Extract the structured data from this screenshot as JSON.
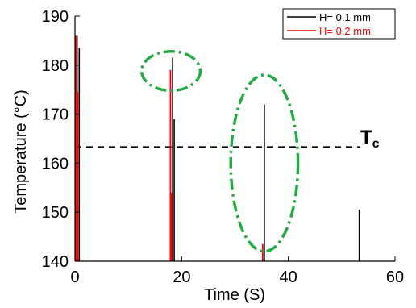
{
  "chart_data": {
    "type": "line",
    "title": "",
    "xlabel": "Time (S)",
    "ylabel": "Temperature (°C)",
    "xlim": [
      0,
      60
    ],
    "ylim": [
      140,
      190
    ],
    "xticks": [
      0,
      20,
      40,
      60
    ],
    "yticks": [
      140,
      150,
      160,
      170,
      180,
      190
    ],
    "grid": false,
    "legend_position": "top-right",
    "series": [
      {
        "name": "H= 0.1 mm",
        "color": "#000000",
        "spikes": [
          {
            "x": 0.4,
            "peak": 186.0
          },
          {
            "x": 0.8,
            "peak": 183.5
          },
          {
            "x": 18.3,
            "peak": 181.5
          },
          {
            "x": 18.6,
            "peak": 169.0
          },
          {
            "x": 35.5,
            "peak": 172.0
          },
          {
            "x": 53.3,
            "peak": 150.5
          }
        ]
      },
      {
        "name": "H= 0.2 mm",
        "color": "#ff0000",
        "spikes": [
          {
            "x": 0.2,
            "peak": 186.0
          },
          {
            "x": 0.5,
            "peak": 174.5
          },
          {
            "x": 17.9,
            "peak": 179.0
          },
          {
            "x": 18.1,
            "peak": 154.0
          },
          {
            "x": 35.2,
            "peak": 143.5
          }
        ]
      }
    ],
    "threshold": {
      "value": 163.3,
      "label": "T",
      "subscript": "c",
      "style": "dashed",
      "color": "#000000"
    },
    "annotations": [
      {
        "type": "ellipse",
        "cx": 18.0,
        "cy": 178.8,
        "rx": 5.5,
        "ry": 4.0,
        "color": "#22aa44",
        "style": "dash-dot"
      },
      {
        "type": "ellipse",
        "cx": 35.5,
        "cy": 160.0,
        "rx": 6.3,
        "ry": 18.0,
        "color": "#22aa44",
        "style": "dash-dot"
      }
    ]
  }
}
